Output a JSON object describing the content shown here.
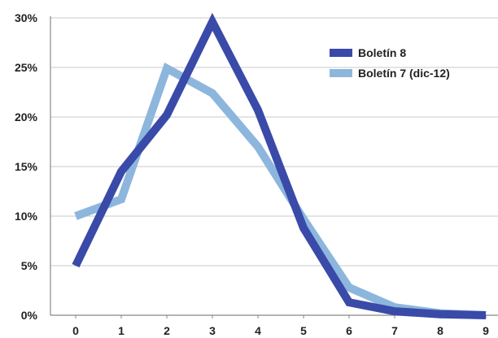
{
  "chart_data": {
    "type": "line",
    "categories": [
      "0",
      "1",
      "2",
      "3",
      "4",
      "5",
      "6",
      "7",
      "8",
      "9"
    ],
    "ylim": [
      0,
      30
    ],
    "yticks": [
      0,
      5,
      10,
      15,
      20,
      25,
      30
    ],
    "ytick_labels": [
      "0%",
      "5%",
      "10%",
      "15%",
      "20%",
      "25%",
      "30%"
    ],
    "grid": "horizontal",
    "legend_position": "top-right",
    "series": [
      {
        "name": "Boletín 8",
        "color": "#3a4aa8",
        "values": [
          5.0,
          14.5,
          20.2,
          29.6,
          20.7,
          8.8,
          1.3,
          0.4,
          0.1,
          0.0
        ]
      },
      {
        "name": "Boletín 7 (dic-12)",
        "color": "#8db6dd",
        "values": [
          10.0,
          11.7,
          24.9,
          22.4,
          17.0,
          9.7,
          2.8,
          0.8,
          0.2,
          0.0
        ]
      }
    ]
  }
}
